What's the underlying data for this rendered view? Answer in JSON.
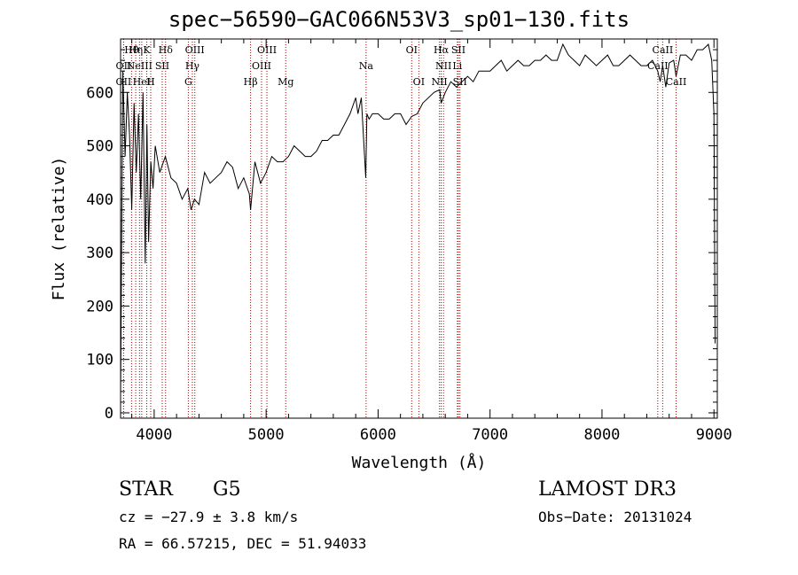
{
  "chart_data": {
    "type": "line",
    "title": "spec−56590−GAC066N53V3_sp01−130.fits",
    "xlabel": "Wavelength (Å)",
    "ylabel": "Flux (relative)",
    "xlim": [
      3700,
      9030
    ],
    "ylim": [
      -10,
      700
    ],
    "xticks": [
      4000,
      5000,
      6000,
      7000,
      8000,
      9000
    ],
    "xtick_labels": [
      "4000",
      "5000",
      "6000",
      "7000",
      "8000",
      "9000"
    ],
    "yticks": [
      0,
      100,
      200,
      300,
      400,
      500,
      600
    ],
    "ytick_labels": [
      "0",
      "100",
      "200",
      "300",
      "400",
      "500",
      "600"
    ],
    "series": [
      {
        "name": "spectrum",
        "x": [
          3700,
          3720,
          3740,
          3760,
          3780,
          3800,
          3820,
          3840,
          3860,
          3880,
          3900,
          3920,
          3935,
          3950,
          3970,
          3990,
          4010,
          4050,
          4100,
          4150,
          4200,
          4250,
          4300,
          4330,
          4360,
          4400,
          4450,
          4500,
          4550,
          4600,
          4650,
          4700,
          4750,
          4800,
          4850,
          4861,
          4900,
          4950,
          5000,
          5050,
          5100,
          5150,
          5200,
          5250,
          5300,
          5350,
          5400,
          5450,
          5500,
          5550,
          5600,
          5650,
          5700,
          5750,
          5800,
          5820,
          5850,
          5890,
          5900,
          5920,
          5950,
          6000,
          6050,
          6100,
          6150,
          6200,
          6250,
          6300,
          6350,
          6400,
          6450,
          6500,
          6550,
          6563,
          6600,
          6650,
          6700,
          6750,
          6800,
          6850,
          6900,
          6950,
          7000,
          7050,
          7100,
          7150,
          7200,
          7250,
          7300,
          7350,
          7400,
          7450,
          7500,
          7550,
          7600,
          7650,
          7700,
          7750,
          7800,
          7850,
          7900,
          7950,
          8000,
          8050,
          8100,
          8150,
          8200,
          8250,
          8300,
          8350,
          8400,
          8450,
          8498,
          8520,
          8542,
          8570,
          8600,
          8640,
          8662,
          8700,
          8750,
          8800,
          8850,
          8900,
          8950,
          8980,
          9000,
          9010
        ],
        "y": [
          30,
          640,
          480,
          600,
          520,
          380,
          580,
          450,
          560,
          400,
          600,
          280,
          540,
          320,
          470,
          420,
          500,
          450,
          480,
          440,
          430,
          400,
          420,
          380,
          400,
          390,
          450,
          430,
          440,
          450,
          470,
          460,
          420,
          440,
          410,
          380,
          470,
          430,
          450,
          480,
          470,
          470,
          480,
          500,
          490,
          480,
          480,
          490,
          510,
          510,
          520,
          520,
          540,
          560,
          590,
          560,
          590,
          440,
          560,
          550,
          560,
          560,
          550,
          550,
          560,
          560,
          540,
          555,
          560,
          580,
          590,
          600,
          605,
          580,
          600,
          620,
          610,
          620,
          630,
          620,
          640,
          640,
          640,
          650,
          660,
          640,
          650,
          660,
          650,
          650,
          660,
          660,
          670,
          660,
          660,
          690,
          670,
          660,
          650,
          670,
          660,
          650,
          660,
          670,
          650,
          650,
          660,
          670,
          660,
          650,
          650,
          660,
          640,
          620,
          650,
          610,
          655,
          660,
          630,
          670,
          670,
          660,
          680,
          680,
          690,
          660,
          560,
          130
        ]
      }
    ],
    "lines": [
      {
        "name": "OII",
        "x": 3727,
        "row": 3
      },
      {
        "name": "OII",
        "x": 3727,
        "row": 2
      },
      {
        "name": "Hθ",
        "x": 3798,
        "row": 1
      },
      {
        "name": "Hη",
        "x": 3835,
        "row": 1
      },
      {
        "name": "NeIII",
        "x": 3869,
        "row": 2
      },
      {
        "name": "K",
        "x": 3934,
        "row": 1
      },
      {
        "name": "H",
        "x": 3969,
        "row": 3
      },
      {
        "name": "HeI",
        "x": 3889,
        "row": 3
      },
      {
        "name": "SII",
        "x": 4072,
        "row": 2
      },
      {
        "name": "Hδ",
        "x": 4102,
        "row": 1
      },
      {
        "name": "OIII",
        "x": 4363,
        "row": 1
      },
      {
        "name": "Hγ",
        "x": 4341,
        "row": 2
      },
      {
        "name": "G",
        "x": 4305,
        "row": 3
      },
      {
        "name": "Hβ",
        "x": 4861,
        "row": 3
      },
      {
        "name": "OIII",
        "x": 4959,
        "row": 2
      },
      {
        "name": "OIII",
        "x": 5007,
        "row": 1
      },
      {
        "name": "Mg",
        "x": 5175,
        "row": 3
      },
      {
        "name": "Na",
        "x": 5893,
        "row": 2
      },
      {
        "name": "OI",
        "x": 6300,
        "row": 1
      },
      {
        "name": "OI",
        "x": 6364,
        "row": 3
      },
      {
        "name": "NII",
        "x": 6548,
        "row": 3
      },
      {
        "name": "Hα",
        "x": 6563,
        "row": 1
      },
      {
        "name": "NII",
        "x": 6584,
        "row": 2
      },
      {
        "name": "Li",
        "x": 6708,
        "row": 2
      },
      {
        "name": "SII",
        "x": 6717,
        "row": 1
      },
      {
        "name": "SII",
        "x": 6731,
        "row": 3
      },
      {
        "name": "CaII",
        "x": 8498,
        "row": 2
      },
      {
        "name": "CaII",
        "x": 8542,
        "row": 1
      },
      {
        "name": "CaII",
        "x": 8662,
        "row": 3
      }
    ]
  },
  "footer": {
    "object_class": "STAR",
    "subclass": "G5",
    "survey": "LAMOST DR3",
    "cz": "cz = −27.9 ± 3.8 km/s",
    "obs_date": "Obs−Date: 20131024",
    "radec": "RA =  66.57215, DEC =  51.94033"
  },
  "colors": {
    "line_marker": "#aa0000",
    "spectrum": "#000000"
  }
}
